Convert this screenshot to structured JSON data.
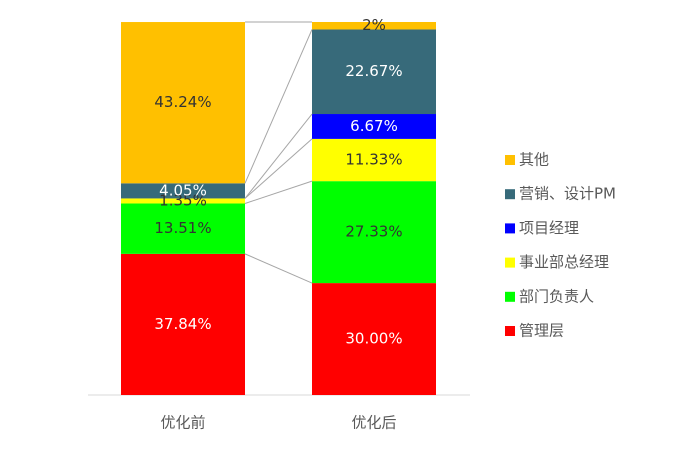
{
  "chart_data": {
    "type": "stacked-bar-100",
    "categories": [
      "优化前",
      "优化后"
    ],
    "ylim": [
      0,
      100
    ],
    "legend": "right",
    "series_lines": true,
    "series": [
      {
        "name": "管理层",
        "color": "#ff0000",
        "label_color": "#ffffff",
        "values": [
          37.84,
          30.0
        ],
        "value_labels": [
          "37.84%",
          "30.00%"
        ]
      },
      {
        "name": "部门负责人",
        "color": "#00ff00",
        "label_color": "#333333",
        "values": [
          13.51,
          27.33
        ],
        "value_labels": [
          "13.51%",
          "27.33%"
        ]
      },
      {
        "name": "事业部总经理",
        "color": "#ffff00",
        "label_color": "#333333",
        "values": [
          1.35,
          11.33
        ],
        "value_labels": [
          "1.35%",
          "11.33%"
        ]
      },
      {
        "name": "项目经理",
        "color": "#0000ff",
        "label_color": "#ffffff",
        "values": [
          0,
          6.67
        ],
        "value_labels": [
          null,
          "6.67%"
        ]
      },
      {
        "name": "营销、设计PM",
        "color": "#376a7a",
        "label_color": "#ffffff",
        "values": [
          4.05,
          22.67
        ],
        "value_labels": [
          "4.05%",
          "22.67%"
        ]
      },
      {
        "name": "其他",
        "color": "#ffc000",
        "label_color": "#333333",
        "values": [
          43.24,
          2
        ],
        "value_labels": [
          "43.24%",
          "2%"
        ]
      }
    ]
  }
}
